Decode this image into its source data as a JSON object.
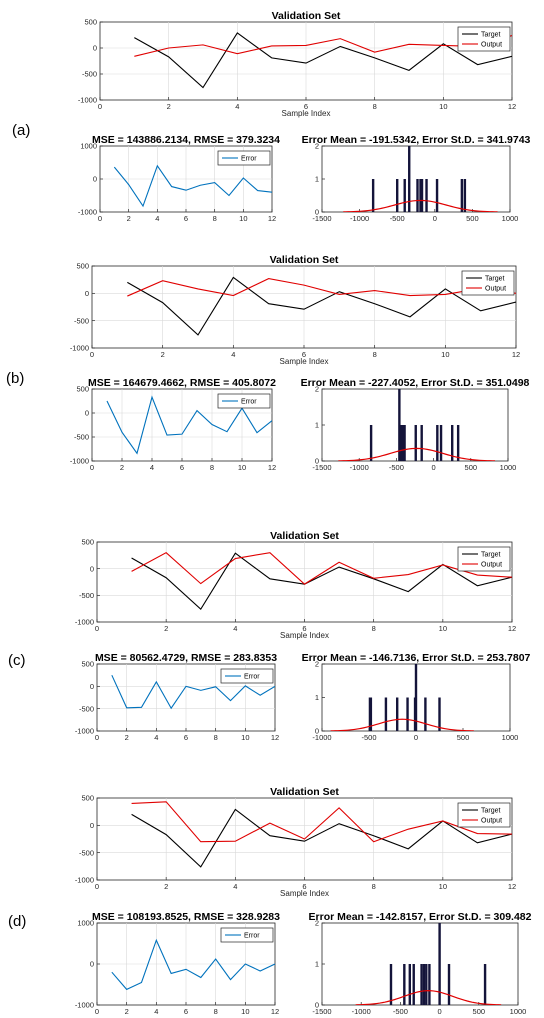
{
  "colors": {
    "target": "#000000",
    "output": "#e00000",
    "error": "#0072bd",
    "hist": "#14143a",
    "fit": "#e00000"
  },
  "chart_data": [
    {
      "panel_label": "(a)",
      "validation": {
        "type": "line",
        "title": "Validation Set",
        "xlabel": "Sample Index",
        "xlim": [
          0,
          12
        ],
        "ylim": [
          -1000,
          500
        ],
        "xticks": [
          0,
          2,
          4,
          6,
          8,
          10,
          12
        ],
        "yticks": [
          -1000,
          -500,
          0,
          500
        ],
        "grid": true,
        "legend_position": "top-right",
        "x": [
          1,
          2,
          3,
          4,
          5,
          6,
          7,
          8,
          9,
          10,
          11,
          12
        ],
        "series": [
          {
            "name": "Target",
            "values": [
              200,
              -170,
              -760,
              290,
              -190,
              -290,
              30,
              -190,
              -430,
              80,
              -320,
              -160
            ]
          },
          {
            "name": "Output",
            "values": [
              -160,
              0,
              60,
              -110,
              40,
              50,
              180,
              -80,
              70,
              50,
              30,
              240
            ]
          }
        ]
      },
      "error": {
        "type": "line",
        "title": "MSE = 143886.2134, RMSE = 379.3234",
        "xlim": [
          0,
          12
        ],
        "ylim": [
          -1000,
          1000
        ],
        "xticks": [
          0,
          2,
          4,
          6,
          8,
          10,
          12
        ],
        "yticks": [
          -1000,
          0,
          1000
        ],
        "grid": true,
        "legend_position": "top-right",
        "x": [
          1,
          2,
          3,
          4,
          5,
          6,
          7,
          8,
          9,
          10,
          11,
          12
        ],
        "series": [
          {
            "name": "Error",
            "values": [
              360,
              -170,
              -820,
              400,
              -230,
              -340,
              -190,
              -110,
              -500,
              30,
              -350,
              -400
            ]
          }
        ]
      },
      "histogram": {
        "type": "bar",
        "title": "Error Mean = -191.5342, Error St.D. = 341.9743",
        "xlim": [
          -1500,
          1000
        ],
        "ylim": [
          0,
          2
        ],
        "xticks": [
          -1500,
          -1000,
          -500,
          0,
          500,
          1000
        ],
        "yticks": [
          0,
          1,
          2
        ],
        "bins": [
          -820,
          -500,
          -400,
          -340,
          -230,
          -190,
          -170,
          -110,
          30,
          360,
          400
        ],
        "counts": [
          1,
          1,
          1,
          2,
          1,
          1,
          1,
          1,
          1,
          1,
          1
        ],
        "fit_mean": -191.5342,
        "fit_std": 341.9743
      }
    },
    {
      "panel_label": "(b)",
      "validation": {
        "type": "line",
        "title": "Validation Set",
        "xlabel": "Sample Index",
        "xlim": [
          0,
          12
        ],
        "ylim": [
          -1000,
          500
        ],
        "xticks": [
          0,
          2,
          4,
          6,
          8,
          10,
          12
        ],
        "yticks": [
          -1000,
          -500,
          0,
          500
        ],
        "grid": true,
        "legend_position": "top-right",
        "x": [
          1,
          2,
          3,
          4,
          5,
          6,
          7,
          8,
          9,
          10,
          11,
          12
        ],
        "series": [
          {
            "name": "Target",
            "values": [
              200,
              -170,
              -760,
              290,
              -190,
              -290,
              30,
              -190,
              -430,
              80,
              -320,
              -160
            ]
          },
          {
            "name": "Output",
            "values": [
              -50,
              230,
              80,
              -40,
              270,
              150,
              -20,
              50,
              -40,
              -20,
              90,
              0
            ]
          }
        ]
      },
      "error": {
        "type": "line",
        "title": "MSE = 164679.4662, RMSE = 405.8072",
        "xlim": [
          0,
          12
        ],
        "ylim": [
          -1000,
          500
        ],
        "xticks": [
          0,
          2,
          4,
          6,
          8,
          10,
          12
        ],
        "yticks": [
          -1000,
          -500,
          0,
          500
        ],
        "grid": true,
        "legend_position": "top-right",
        "x": [
          1,
          2,
          3,
          4,
          5,
          6,
          7,
          8,
          9,
          10,
          11,
          12
        ],
        "series": [
          {
            "name": "Error",
            "values": [
              250,
              -400,
              -840,
              330,
              -460,
              -440,
              50,
              -240,
              -390,
              100,
              -410,
              -160
            ]
          }
        ]
      },
      "histogram": {
        "type": "bar",
        "title": "Error Mean = -227.4052, Error St.D. = 351.0498",
        "xlim": [
          -1500,
          1000
        ],
        "ylim": [
          0,
          2
        ],
        "xticks": [
          -1500,
          -1000,
          -500,
          0,
          500,
          1000
        ],
        "yticks": [
          0,
          1,
          2
        ],
        "bins": [
          -840,
          -460,
          -440,
          -410,
          -390,
          -240,
          -160,
          50,
          100,
          250,
          330
        ],
        "counts": [
          1,
          2,
          1,
          1,
          1,
          1,
          1,
          1,
          1,
          1,
          1
        ],
        "fit_mean": -227.4052,
        "fit_std": 351.0498
      }
    },
    {
      "panel_label": "(c)",
      "validation": {
        "type": "line",
        "title": "Validation Set",
        "xlabel": "Sample Index",
        "xlim": [
          0,
          12
        ],
        "ylim": [
          -1000,
          500
        ],
        "xticks": [
          0,
          2,
          4,
          6,
          8,
          10,
          12
        ],
        "yticks": [
          -1000,
          -500,
          0,
          500
        ],
        "grid": true,
        "legend_position": "top-right",
        "x": [
          1,
          2,
          3,
          4,
          5,
          6,
          7,
          8,
          9,
          10,
          11,
          12
        ],
        "series": [
          {
            "name": "Target",
            "values": [
              200,
              -170,
              -760,
              290,
              -190,
              -290,
              30,
              -190,
              -430,
              80,
              -320,
              -160
            ]
          },
          {
            "name": "Output",
            "values": [
              -50,
              300,
              -280,
              190,
              300,
              -290,
              120,
              -180,
              -110,
              70,
              -120,
              -160
            ]
          }
        ]
      },
      "error": {
        "type": "line",
        "title": "MSE = 80562.4729, RMSE = 283.8353",
        "xlim": [
          0,
          12
        ],
        "ylim": [
          -1000,
          500
        ],
        "xticks": [
          0,
          2,
          4,
          6,
          8,
          10,
          12
        ],
        "yticks": [
          -1000,
          -500,
          0,
          500
        ],
        "grid": true,
        "legend_position": "top-right",
        "x": [
          1,
          2,
          3,
          4,
          5,
          6,
          7,
          8,
          9,
          10,
          11,
          12
        ],
        "series": [
          {
            "name": "Error",
            "values": [
              250,
              -480,
              -470,
              100,
              -490,
              0,
              -90,
              -10,
              -320,
              10,
              -200,
              0
            ]
          }
        ]
      },
      "histogram": {
        "type": "bar",
        "title": "Error Mean = -146.7136, Error St.D. = 253.7807",
        "xlim": [
          -1000,
          1000
        ],
        "ylim": [
          0,
          2
        ],
        "xticks": [
          -1000,
          -500,
          0,
          500,
          1000
        ],
        "yticks": [
          0,
          1,
          2
        ],
        "bins": [
          -490,
          -480,
          -320,
          -200,
          -90,
          -10,
          0,
          100,
          250
        ],
        "counts": [
          1,
          1,
          1,
          1,
          1,
          1,
          2,
          1,
          1
        ],
        "fit_mean": -146.7136,
        "fit_std": 253.7807
      }
    },
    {
      "panel_label": "(d)",
      "validation": {
        "type": "line",
        "title": "Validation Set",
        "xlabel": "Sample Index",
        "xlim": [
          0,
          12
        ],
        "ylim": [
          -1000,
          500
        ],
        "xticks": [
          0,
          2,
          4,
          6,
          8,
          10,
          12
        ],
        "yticks": [
          -1000,
          -500,
          0,
          500
        ],
        "grid": true,
        "legend_position": "top-right",
        "x": [
          1,
          2,
          3,
          4,
          5,
          6,
          7,
          8,
          9,
          10,
          11,
          12
        ],
        "series": [
          {
            "name": "Target",
            "values": [
              200,
              -170,
              -760,
              290,
              -190,
              -290,
              30,
              -190,
              -430,
              80,
              -320,
              -160
            ]
          },
          {
            "name": "Output",
            "values": [
              400,
              430,
              -300,
              -290,
              40,
              -250,
              320,
              -300,
              -70,
              80,
              -150,
              -160
            ]
          }
        ]
      },
      "error": {
        "type": "line",
        "title": "MSE = 108193.8525, RMSE = 328.9283",
        "xlim": [
          0,
          12
        ],
        "ylim": [
          -1000,
          1000
        ],
        "xticks": [
          0,
          2,
          4,
          6,
          8,
          10,
          12
        ],
        "yticks": [
          -1000,
          0,
          1000
        ],
        "grid": true,
        "legend_position": "top-right",
        "x": [
          1,
          2,
          3,
          4,
          5,
          6,
          7,
          8,
          9,
          10,
          11,
          12
        ],
        "series": [
          {
            "name": "Error",
            "values": [
              -200,
              -620,
              -450,
              580,
              -230,
              -130,
              -330,
              120,
              -380,
              0,
              -170,
              0
            ]
          }
        ]
      },
      "histogram": {
        "type": "bar",
        "title": "Error Mean = -142.8157, Error St.D. = 309.482",
        "xlim": [
          -1500,
          1000
        ],
        "ylim": [
          0,
          2
        ],
        "xticks": [
          -1500,
          -1000,
          -500,
          0,
          500,
          1000
        ],
        "yticks": [
          0,
          1,
          2
        ],
        "bins": [
          -620,
          -450,
          -380,
          -330,
          -230,
          -200,
          -170,
          -130,
          0,
          120,
          580
        ],
        "counts": [
          1,
          1,
          1,
          1,
          1,
          1,
          1,
          1,
          2,
          1,
          1
        ],
        "fit_mean": -142.8157,
        "fit_std": 309.482
      }
    }
  ]
}
